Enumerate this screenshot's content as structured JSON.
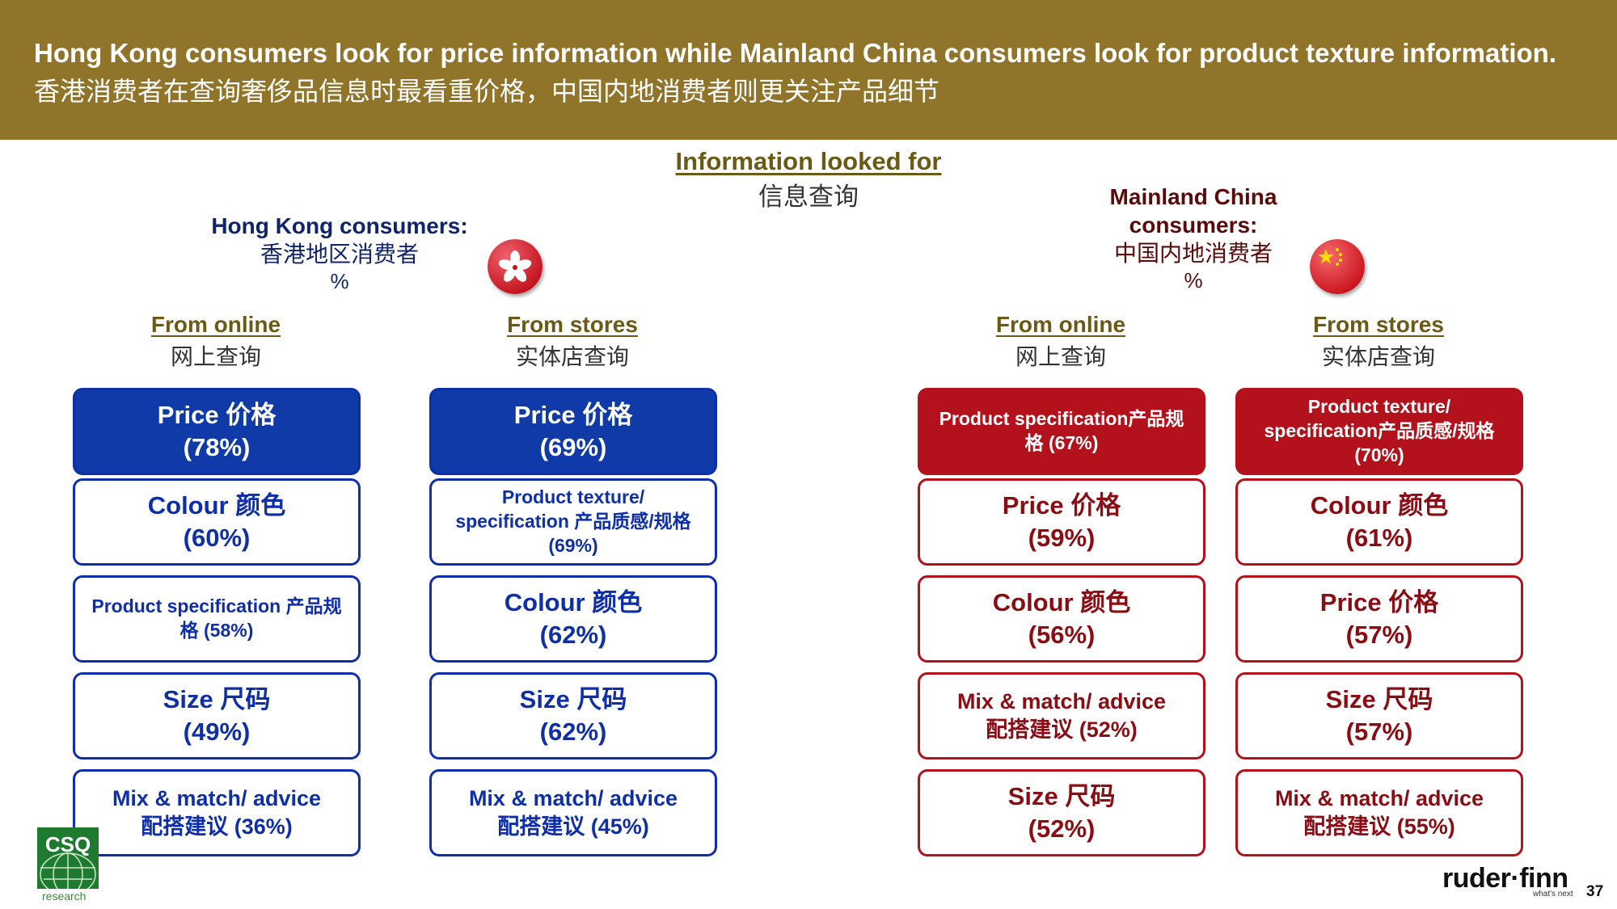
{
  "banner": {
    "title_en": "Hong Kong consumers look for price information while Mainland China consumers look for product texture information.",
    "title_zh": "香港消费者在查询奢侈品信息时最看重价格，中国内地消费者则更关注产品细节"
  },
  "section": {
    "title_en": "Information looked for",
    "title_zh": "信息查询"
  },
  "hk": {
    "title_en": "Hong Kong consumers:",
    "title_zh": "香港地区消费者",
    "unit": "%",
    "online": {
      "head_en": "From online",
      "head_zh": "网上查询",
      "items": [
        {
          "line1": "Price 价格",
          "line2": "(78%)"
        },
        {
          "line1": "Colour 颜色",
          "line2": "(60%)"
        },
        {
          "line1": "Product  specification 产品规",
          "line2": "格 (58%)"
        },
        {
          "line1": "Size 尺码",
          "line2": "(49%)"
        },
        {
          "line1": "Mix & match/ advice",
          "line2": "配搭建议 (36%)"
        }
      ]
    },
    "stores": {
      "head_en": "From stores",
      "head_zh": "实体店查询",
      "items": [
        {
          "line1": "Price 价格",
          "line2": "(69%)"
        },
        {
          "line1": "Product texture/",
          "line2": "specification 产品质感/规格",
          "line3": "(69%)"
        },
        {
          "line1": "Colour 颜色",
          "line2": "(62%)"
        },
        {
          "line1": "Size 尺码",
          "line2": "(62%)"
        },
        {
          "line1": "Mix & match/ advice",
          "line2": "配搭建议 (45%)"
        }
      ]
    }
  },
  "cn": {
    "title_en_1": "Mainland China",
    "title_en_2": "consumers:",
    "title_zh": "中国内地消费者",
    "unit": "%",
    "online": {
      "head_en": "From online",
      "head_zh": "网上查询",
      "items": [
        {
          "line1": "Product specification产品规",
          "line2": "格 (67%)"
        },
        {
          "line1": "Price 价格",
          "line2": "(59%)"
        },
        {
          "line1": "Colour 颜色",
          "line2": "(56%)"
        },
        {
          "line1": "Mix & match/ advice",
          "line2": "配搭建议 (52%)"
        },
        {
          "line1": "Size 尺码",
          "line2": "(52%)"
        }
      ]
    },
    "stores": {
      "head_en": "From stores",
      "head_zh": "实体店查询",
      "items": [
        {
          "line1": "Product texture/",
          "line2": "specification产品质感/规格",
          "line3": "(70%)"
        },
        {
          "line1": "Colour 颜色",
          "line2": "(61%)"
        },
        {
          "line1": "Price 价格",
          "line2": "(57%)"
        },
        {
          "line1": "Size 尺码",
          "line2": "(57%)"
        },
        {
          "line1": "Mix & match/ advice",
          "line2": "配搭建议 (55%)"
        }
      ]
    }
  },
  "footer": {
    "logo_text": "CSQ",
    "logo_sub": "research",
    "brand": "ruder·finn",
    "tagline": "what's next",
    "page_number": "37"
  },
  "colors": {
    "banner": "#8F742A",
    "hk_blue": "#0F2FA8",
    "cn_red": "#B3121C"
  }
}
